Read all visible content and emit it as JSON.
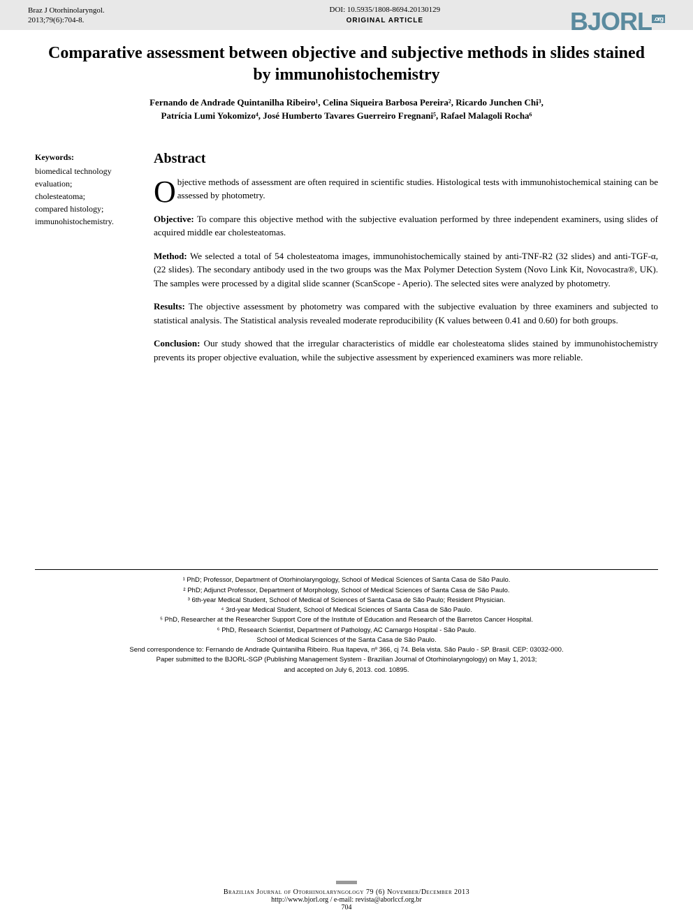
{
  "header": {
    "journal_abbrev": "Braz J Otorhinolaryngol.",
    "citation": "2013;79(6):704-8.",
    "doi": "DOI: 10.5935/1808-8694.20130129",
    "article_type": "ORIGINAL ARTICLE",
    "logo_text": "BJORL",
    "logo_suffix": ".org"
  },
  "title": "Comparative assessment between objective and subjective methods in slides stained by immunohistochemistry",
  "authors_line1": "Fernando de Andrade Quintanilha Ribeiro¹, Celina Siqueira Barbosa Pereira², Ricardo Junchen Chi³,",
  "authors_line2": "Patrícia Lumi Yokomizo⁴, José Humberto Tavares Guerreiro Fregnani⁵, Rafael Malagoli Rocha⁶",
  "sidebar": {
    "heading": "Keywords:",
    "k1": "biomedical technology evaluation;",
    "k2": "cholesteatoma;",
    "k3": "compared histology;",
    "k4": "immunohistochemistry."
  },
  "abstract": {
    "heading": "Abstract",
    "dropcap": "O",
    "intro": "bjective methods of assessment are often required in scientific studies. Histological tests with immunohistochemical staining can be assessed by photometry.",
    "objective_label": "Objective:",
    "objective": " To compare this objective method with the subjective evaluation performed by three independent examiners, using slides of acquired middle ear cholesteatomas.",
    "method_label": "Method:",
    "method": " We selected a total of 54 cholesteatoma images, immunohistochemically stained by anti-TNF-R2 (32 slides) and anti-TGF-α, (22 slides). The secondary antibody used in the two groups was the Max Polymer Detection System (Novo Link Kit, Novocastra®, UK). The samples were processed by a digital slide scanner (ScanScope - Aperio). The selected sites were analyzed by photometry.",
    "results_label": "Results:",
    "results": " The objective assessment by photometry was compared with the subjective evaluation by three examiners and subjected to statistical analysis. The Statistical analysis revealed moderate reproducibility (K values between 0.41 and 0.60) for both groups.",
    "conclusion_label": "Conclusion:",
    "conclusion": " Our study showed that the irregular characteristics of middle ear cholesteatoma slides stained by immunohistochemistry prevents its proper objective evaluation, while the subjective assessment by experienced examiners was more reliable."
  },
  "affiliations": {
    "a1": "¹ PhD; Professor, Department of Otorhinolaryngology, School of Medical Sciences of Santa Casa de São Paulo.",
    "a2": "² PhD; Adjunct Professor, Department of Morphology, School of Medical Sciences of Santa Casa de São Paulo.",
    "a3": "³ 6th-year Medical Student, School of Medical of Sciences of Santa Casa de São Paulo; Resident Physician.",
    "a4": "⁴ 3rd-year Medical Student, School of Medical Sciences of Santa Casa de São Paulo.",
    "a5": "⁵ PhD, Researcher at the Researcher Support Core of the Institute of Education and Research of the Barretos Cancer Hospital.",
    "a6": "⁶ PhD, Research Scientist, Department of Pathology, AC Camargo Hospital - São Paulo.",
    "school": "School of Medical Sciences of the Santa Casa de São Paulo.",
    "correspondence": "Send correspondence to: Fernando de Andrade Quintanilha Ribeiro. Rua Itapeva, nº 366, cj 74. Bela vista. São Paulo - SP. Brasil. CEP: 03032-000.",
    "submitted": "Paper submitted to the BJORL-SGP (Publishing Management System - Brazilian Journal of Otorhinolaryngology) on May 1, 2013;",
    "accepted": "and accepted on July 6, 2013. cod. 10895."
  },
  "footer": {
    "journal": "Brazilian Journal of Otorhinolaryngology 79 (6) November/December 2013",
    "url": "http://www.bjorl.org  /  e-mail: revista@aborlccf.org.br",
    "page": "704"
  },
  "colors": {
    "header_bg": "#e8e8e8",
    "logo_color": "#5a8a9e",
    "text": "#000000",
    "page_bg": "#ffffff"
  },
  "typography": {
    "title_fontsize": 24,
    "body_fontsize": 13,
    "footnote_fontsize": 9.5,
    "abstract_heading_fontsize": 20,
    "dropcap_fontsize": 44
  }
}
